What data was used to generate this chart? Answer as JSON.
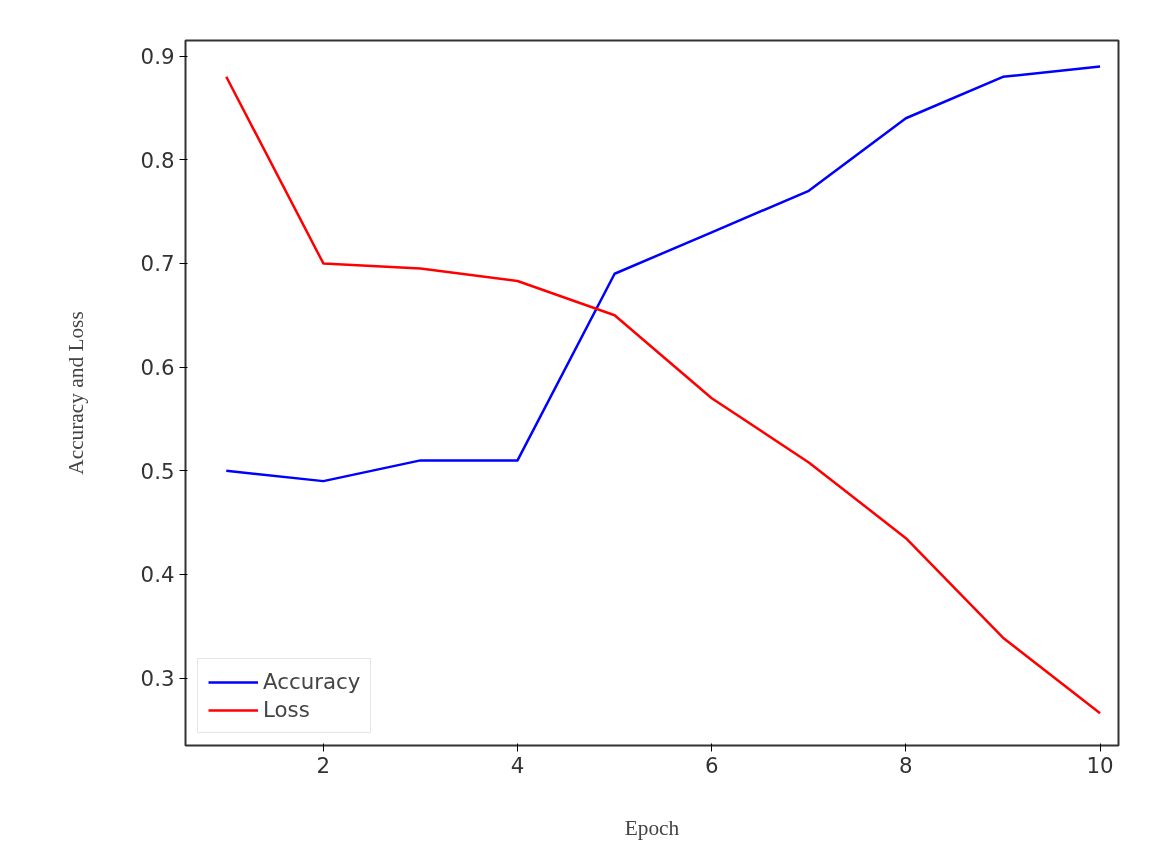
{
  "chart_data": {
    "type": "line",
    "xlabel": "Epoch",
    "ylabel": "Accuracy and Loss",
    "x": [
      1,
      2,
      3,
      4,
      5,
      6,
      7,
      8,
      9,
      10
    ],
    "series": [
      {
        "name": "Accuracy",
        "color": "#0000ff",
        "values": [
          0.5,
          0.49,
          0.51,
          0.51,
          0.69,
          0.73,
          0.77,
          0.84,
          0.88,
          0.89
        ]
      },
      {
        "name": "Loss",
        "color": "#ff0000",
        "values": [
          0.88,
          0.7,
          0.695,
          0.683,
          0.65,
          0.57,
          0.508,
          0.435,
          0.339,
          0.266
        ]
      }
    ],
    "xlim": [
      0.58,
      10.19
    ],
    "ylim": [
      0.235,
      0.915
    ],
    "xticks": [
      2,
      4,
      6,
      8,
      10
    ],
    "yticks": [
      0.3,
      0.4,
      0.5,
      0.6,
      0.7,
      0.8,
      0.9
    ],
    "grid": false,
    "legend": "bottom left",
    "marker": "none",
    "line_style": "solid"
  }
}
